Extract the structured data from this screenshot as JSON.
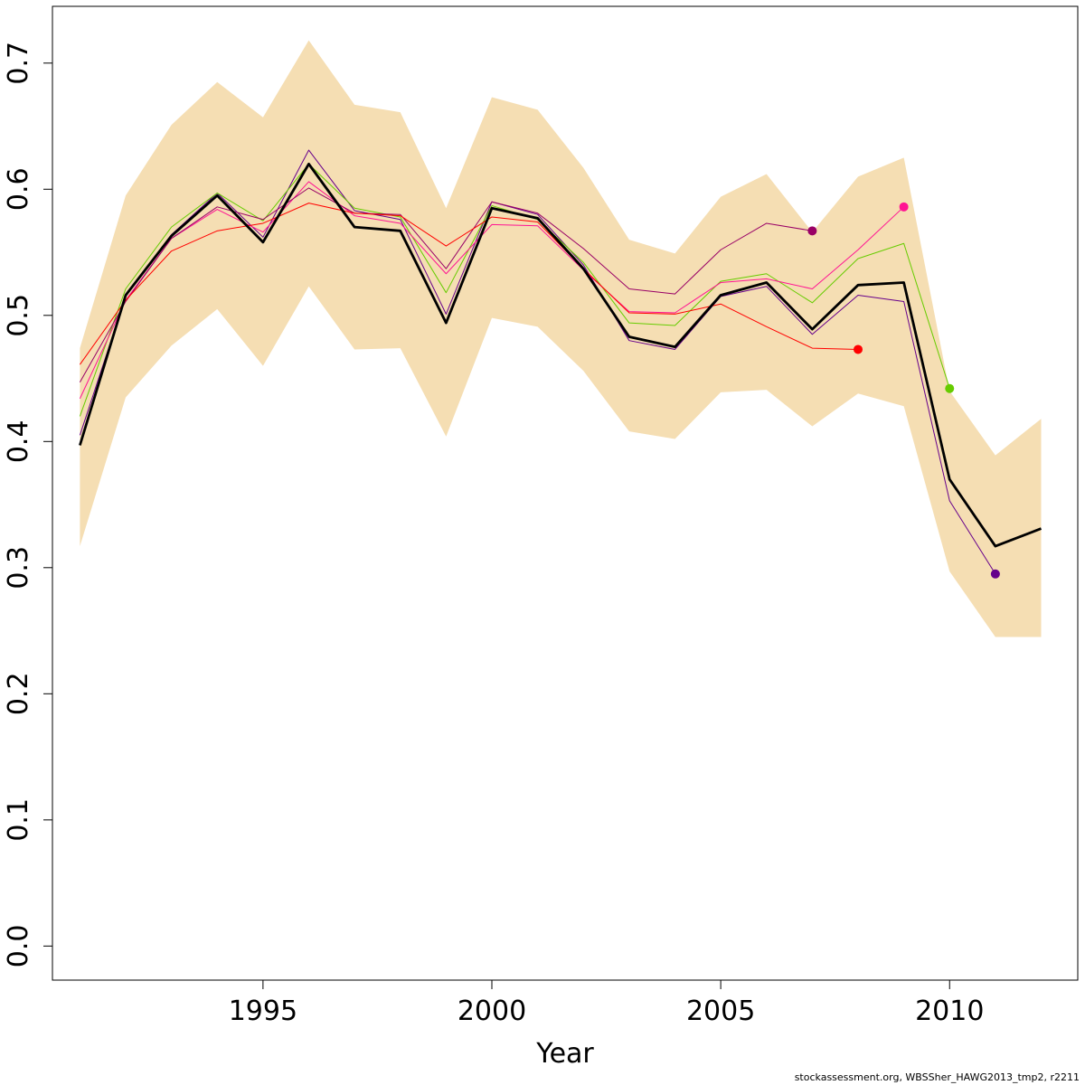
{
  "chart_data": {
    "type": "line",
    "xlabel": "Year",
    "ylabel": "",
    "title": "",
    "xlim": [
      1990.4,
      2012.8
    ],
    "ylim": [
      -0.027,
      0.745
    ],
    "xticks": [
      1995,
      2000,
      2005,
      2010
    ],
    "yticks": [
      0.0,
      0.1,
      0.2,
      0.3,
      0.4,
      0.5,
      0.6,
      0.7
    ],
    "ytick_labels": [
      "0.0",
      "0.1",
      "0.2",
      "0.3",
      "0.4",
      "0.5",
      "0.6",
      "0.7"
    ],
    "xtick_labels": [
      "1995",
      "2000",
      "2005",
      "2010"
    ],
    "grid": false,
    "band": {
      "color": "#F5DEB3",
      "x": [
        1991,
        1992,
        1993,
        1994,
        1995,
        1996,
        1997,
        1998,
        1999,
        2000,
        2001,
        2002,
        2003,
        2004,
        2005,
        2006,
        2007,
        2008,
        2009,
        2010,
        2011,
        2012
      ],
      "upper": [
        0.474,
        0.595,
        0.651,
        0.685,
        0.657,
        0.718,
        0.667,
        0.661,
        0.585,
        0.673,
        0.663,
        0.617,
        0.56,
        0.549,
        0.594,
        0.612,
        0.566,
        0.61,
        0.625,
        0.44,
        0.389,
        0.418
      ],
      "lower": [
        0.317,
        0.435,
        0.476,
        0.505,
        0.46,
        0.523,
        0.473,
        0.474,
        0.404,
        0.498,
        0.491,
        0.456,
        0.408,
        0.402,
        0.439,
        0.441,
        0.412,
        0.438,
        0.428,
        0.297,
        0.245,
        0.245
      ]
    },
    "series": [
      {
        "color": "#000000",
        "width": 2.8,
        "x": [
          1991,
          1992,
          1993,
          1994,
          1995,
          1996,
          1997,
          1998,
          1999,
          2000,
          2001,
          2002,
          2003,
          2004,
          2005,
          2006,
          2007,
          2008,
          2009,
          2010,
          2011,
          2012
        ],
        "values": [
          0.397,
          0.516,
          0.563,
          0.595,
          0.558,
          0.62,
          0.57,
          0.567,
          0.494,
          0.585,
          0.577,
          0.537,
          0.483,
          0.475,
          0.516,
          0.526,
          0.489,
          0.524,
          0.526,
          0.37,
          0.317,
          0.331
        ]
      },
      {
        "color": "#66008B",
        "width": 1,
        "end_point": true,
        "x": [
          1991,
          1992,
          1993,
          1994,
          1995,
          1996,
          1997,
          1998,
          1999,
          2000,
          2001,
          2002,
          2003,
          2004,
          2005,
          2006,
          2007,
          2008,
          2009,
          2010,
          2011
        ],
        "values": [
          0.405,
          0.515,
          0.564,
          0.597,
          0.562,
          0.631,
          0.583,
          0.576,
          0.501,
          0.59,
          0.58,
          0.54,
          0.48,
          0.473,
          0.515,
          0.523,
          0.485,
          0.516,
          0.511,
          0.353,
          0.295
        ]
      },
      {
        "color": "#66CC00",
        "width": 1,
        "end_point": true,
        "x": [
          1991,
          1992,
          1993,
          1994,
          1995,
          1996,
          1997,
          1998,
          1999,
          2000,
          2001,
          2002,
          2003,
          2004,
          2005,
          2006,
          2007,
          2008,
          2009,
          2010
        ],
        "values": [
          0.42,
          0.521,
          0.57,
          0.597,
          0.575,
          0.62,
          0.585,
          0.578,
          0.518,
          0.587,
          0.576,
          0.542,
          0.494,
          0.492,
          0.527,
          0.533,
          0.51,
          0.545,
          0.557,
          0.442
        ]
      },
      {
        "color": "#FF1493",
        "width": 1,
        "end_point": true,
        "x": [
          1991,
          1992,
          1993,
          1994,
          1995,
          1996,
          1997,
          1998,
          1999,
          2000,
          2001,
          2002,
          2003,
          2004,
          2005,
          2006,
          2007,
          2008,
          2009
        ],
        "values": [
          0.434,
          0.512,
          0.561,
          0.584,
          0.566,
          0.606,
          0.579,
          0.573,
          0.533,
          0.572,
          0.571,
          0.536,
          0.503,
          0.502,
          0.526,
          0.529,
          0.521,
          0.552,
          0.586
        ]
      },
      {
        "color": "#990066",
        "width": 1,
        "end_point": true,
        "x": [
          1991,
          1992,
          1993,
          1994,
          1995,
          1996,
          1997,
          1998,
          1999,
          2000,
          2001,
          2002,
          2003,
          2004,
          2005,
          2006,
          2007
        ],
        "values": [
          0.447,
          0.511,
          0.561,
          0.586,
          0.576,
          0.601,
          0.581,
          0.58,
          0.537,
          0.59,
          0.581,
          0.553,
          0.521,
          0.517,
          0.552,
          0.573,
          0.567
        ]
      },
      {
        "color": "#FF0000",
        "width": 1,
        "end_point": true,
        "x": [
          1991,
          1992,
          1993,
          1994,
          1995,
          1996,
          1997,
          1998,
          1999,
          2000,
          2001,
          2002,
          2003,
          2004,
          2005,
          2006,
          2007,
          2008
        ],
        "values": [
          0.461,
          0.512,
          0.551,
          0.567,
          0.573,
          0.589,
          0.581,
          0.579,
          0.555,
          0.578,
          0.574,
          0.537,
          0.502,
          0.501,
          0.509,
          0.491,
          0.474,
          0.473
        ]
      }
    ]
  },
  "credit_text": "stockassessment.org, WBSSher_HAWG2013_tmp2, r2211"
}
